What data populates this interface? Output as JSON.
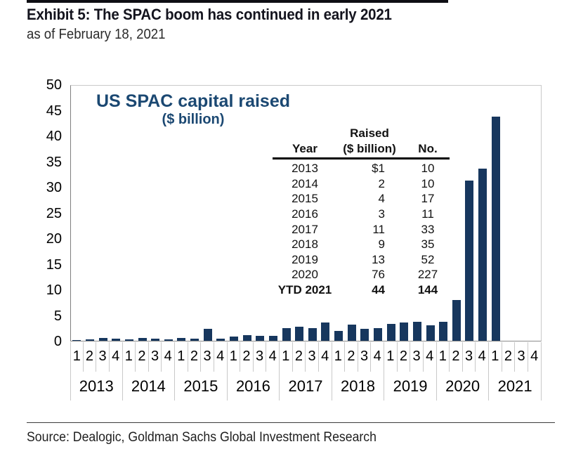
{
  "header": {
    "title": "Exhibit 5: The SPAC boom has continued in early 2021",
    "subtitle": "as of February 18, 2021"
  },
  "source": {
    "text": "Source: Dealogic, Goldman Sachs Global Investment Research"
  },
  "colors": {
    "bar": "#17375E",
    "chart_title": "#1B4872",
    "axis_text": "#000000"
  },
  "chart_data": {
    "type": "bar",
    "title": "US SPAC capital raised",
    "units_label": "($ billion)",
    "ylabel": "",
    "xlabel": "",
    "ylim": [
      0,
      50
    ],
    "yticks": [
      0,
      5,
      10,
      15,
      20,
      25,
      30,
      35,
      40,
      45,
      50
    ],
    "grid": false,
    "legend": "none",
    "years": [
      "2013",
      "2014",
      "2015",
      "2016",
      "2017",
      "2018",
      "2019",
      "2020",
      "2021"
    ],
    "quarters": [
      "1",
      "2",
      "3",
      "4"
    ],
    "series": [
      {
        "name": "US SPAC capital raised ($ billion), quarterly",
        "values": [
          0.15,
          0.3,
          0.6,
          0.35,
          0.3,
          0.55,
          0.35,
          0.3,
          0.55,
          0.45,
          2.3,
          0.45,
          0.8,
          1.1,
          0.95,
          0.95,
          2.4,
          2.8,
          2.5,
          3.6,
          1.9,
          3.1,
          2.3,
          2.4,
          3.3,
          3.6,
          3.75,
          3.0,
          3.75,
          8,
          31.3,
          33.6,
          43.7,
          null,
          null,
          null
        ]
      }
    ],
    "inset_table": {
      "header": {
        "year": "Year",
        "raised_line1": "Raised",
        "raised_line2": "($ billion)",
        "no": "No."
      },
      "rows": [
        {
          "year": "2013",
          "raised": "$1",
          "no": "10"
        },
        {
          "year": "2014",
          "raised": "2",
          "no": "10"
        },
        {
          "year": "2015",
          "raised": "4",
          "no": "17"
        },
        {
          "year": "2016",
          "raised": "3",
          "no": "11"
        },
        {
          "year": "2017",
          "raised": "11",
          "no": "33"
        },
        {
          "year": "2018",
          "raised": "9",
          "no": "35"
        },
        {
          "year": "2019",
          "raised": "13",
          "no": "52"
        },
        {
          "year": "2020",
          "raised": "76",
          "no": "227"
        },
        {
          "year": "YTD 2021",
          "raised": "44",
          "no": "144",
          "bold": true
        }
      ]
    }
  }
}
